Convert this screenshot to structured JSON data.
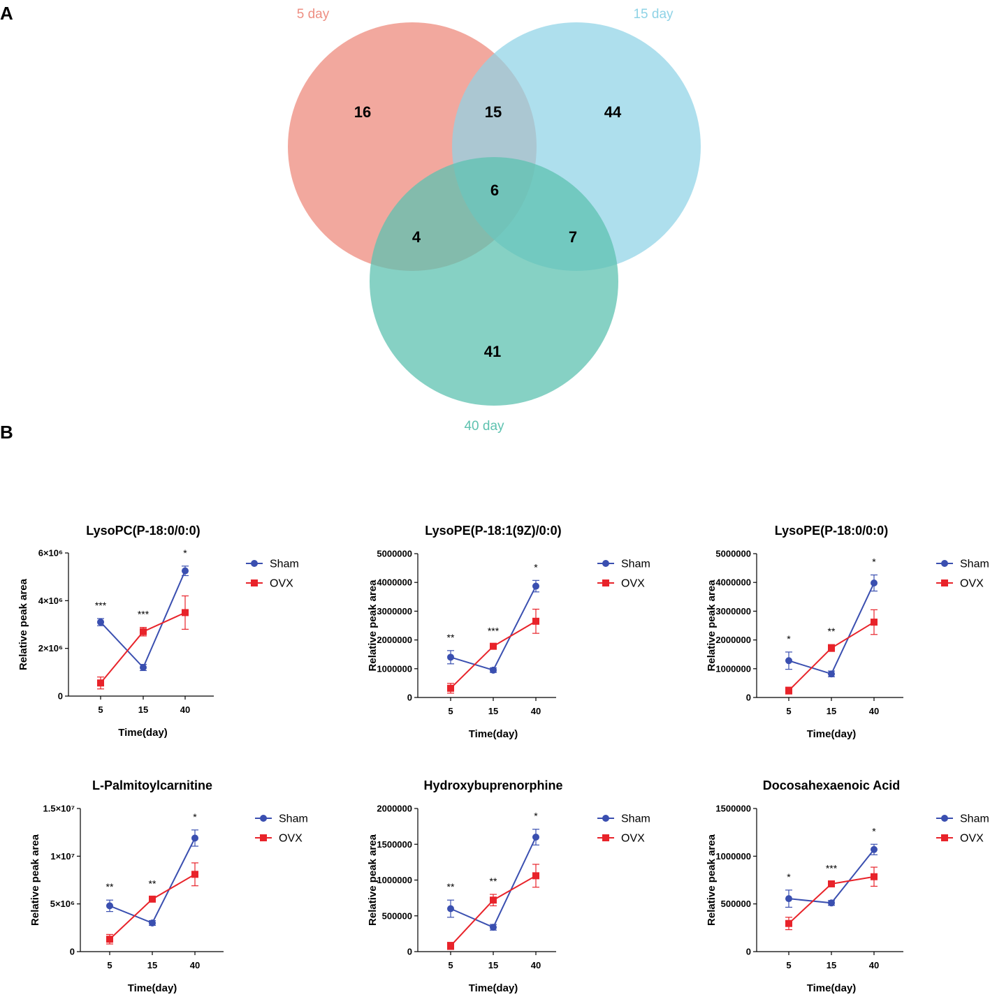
{
  "panel_labels": {
    "a": "A",
    "b": "B"
  },
  "colors": {
    "sham": "#3a4fb0",
    "ovx": "#e8232a",
    "venn_5": "#ee8f83",
    "venn_15": "#8fd3e6",
    "venn_40": "#5ec2b0"
  },
  "venn": {
    "sets": [
      {
        "label": "5 day",
        "color": "#ee8f83"
      },
      {
        "label": "15 day",
        "color": "#8fd3e6"
      },
      {
        "label": "40 day",
        "color": "#5ec2b0"
      }
    ],
    "counts": {
      "only_5": "16",
      "five_fifteen": "15",
      "only_15": "44",
      "all_three": "6",
      "five_forty": "4",
      "fifteen_forty": "7",
      "only_40": "41"
    }
  },
  "legend": {
    "sham": "Sham",
    "ovx": "OVX"
  },
  "chart_data": [
    {
      "type": "line",
      "title": "LysoPC(P-18:0/0:0)",
      "xlabel": "Time(day)",
      "ylabel": "Relative peak area",
      "categories": [
        "5",
        "15",
        "40"
      ],
      "ylim": [
        0,
        6000000
      ],
      "yticks": [
        0,
        2000000,
        4000000,
        6000000
      ],
      "ytick_labels": [
        "0",
        "2×10⁶",
        "4×10⁶",
        "6×10⁶"
      ],
      "series": [
        {
          "name": "Sham",
          "values": [
            3100000,
            1200000,
            5250000
          ],
          "errors": [
            150000,
            130000,
            200000
          ]
        },
        {
          "name": "OVX",
          "values": [
            550000,
            2700000,
            3500000
          ],
          "errors": [
            250000,
            180000,
            700000
          ]
        }
      ],
      "significance": [
        "***",
        "***",
        "*"
      ]
    },
    {
      "type": "line",
      "title": "LysoPE(P-18:1(9Z)/0:0)",
      "xlabel": "Time(day)",
      "ylabel": "Relative peak area",
      "categories": [
        "5",
        "15",
        "40"
      ],
      "ylim": [
        0,
        5000000
      ],
      "yticks": [
        0,
        1000000,
        2000000,
        3000000,
        4000000,
        5000000
      ],
      "ytick_labels": [
        "0",
        "1000000",
        "2000000",
        "3000000",
        "4000000",
        "5000000"
      ],
      "series": [
        {
          "name": "Sham",
          "values": [
            1400000,
            950000,
            3870000
          ],
          "errors": [
            230000,
            80000,
            200000
          ]
        },
        {
          "name": "OVX",
          "values": [
            320000,
            1780000,
            2650000
          ],
          "errors": [
            170000,
            80000,
            420000
          ]
        }
      ],
      "significance": [
        "**",
        "***",
        "*"
      ]
    },
    {
      "type": "line",
      "title": "LysoPE(P-18:0/0:0)",
      "xlabel": "Time(day)",
      "ylabel": "Relative peak area",
      "categories": [
        "5",
        "15",
        "40"
      ],
      "ylim": [
        0,
        5000000
      ],
      "yticks": [
        0,
        1000000,
        2000000,
        3000000,
        4000000,
        5000000
      ],
      "ytick_labels": [
        "0",
        "1000000",
        "2000000",
        "3000000",
        "4000000",
        "5000000"
      ],
      "series": [
        {
          "name": "Sham",
          "values": [
            1280000,
            820000,
            3980000
          ],
          "errors": [
            300000,
            100000,
            280000
          ]
        },
        {
          "name": "OVX",
          "values": [
            240000,
            1720000,
            2620000
          ],
          "errors": [
            120000,
            120000,
            430000
          ]
        }
      ],
      "significance": [
        "*",
        "**",
        "*"
      ]
    },
    {
      "type": "line",
      "title": "L-Palmitoylcarnitine",
      "xlabel": "Time(day)",
      "ylabel": "Relative peak area",
      "categories": [
        "5",
        "15",
        "40"
      ],
      "ylim": [
        0,
        15000000
      ],
      "yticks": [
        0,
        5000000,
        10000000,
        15000000
      ],
      "ytick_labels": [
        "0",
        "5×10⁶",
        "1×10⁷",
        "1.5×10⁷"
      ],
      "series": [
        {
          "name": "Sham",
          "values": [
            4800000,
            3000000,
            11900000
          ],
          "errors": [
            600000,
            250000,
            850000
          ]
        },
        {
          "name": "OVX",
          "values": [
            1300000,
            5500000,
            8100000
          ],
          "errors": [
            500000,
            250000,
            1200000
          ]
        }
      ],
      "significance": [
        "**",
        "**",
        "*"
      ]
    },
    {
      "type": "line",
      "title": "Hydroxybuprenorphine",
      "xlabel": "Time(day)",
      "ylabel": "Relative peak area",
      "categories": [
        "5",
        "15",
        "40"
      ],
      "ylim": [
        0,
        2000000
      ],
      "yticks": [
        0,
        500000,
        1000000,
        1500000,
        2000000
      ],
      "ytick_labels": [
        "0",
        "500000",
        "1000000",
        "1500000",
        "2000000"
      ],
      "series": [
        {
          "name": "Sham",
          "values": [
            600000,
            340000,
            1600000
          ],
          "errors": [
            120000,
            40000,
            110000
          ]
        },
        {
          "name": "OVX",
          "values": [
            80000,
            720000,
            1060000
          ],
          "errors": [
            50000,
            80000,
            160000
          ]
        }
      ],
      "significance": [
        "**",
        "**",
        "*"
      ]
    },
    {
      "type": "line",
      "title": "Docosahexaenoic Acid",
      "xlabel": "Time(day)",
      "ylabel": "Relative peak area",
      "categories": [
        "5",
        "15",
        "40"
      ],
      "ylim": [
        0,
        1500000
      ],
      "yticks": [
        0,
        500000,
        1000000,
        1500000
      ],
      "ytick_labels": [
        "0",
        "500000",
        "1000000",
        "1500000"
      ],
      "series": [
        {
          "name": "Sham",
          "values": [
            555000,
            510000,
            1070000
          ],
          "errors": [
            90000,
            25000,
            55000
          ]
        },
        {
          "name": "OVX",
          "values": [
            295000,
            710000,
            785000
          ],
          "errors": [
            65000,
            25000,
            100000
          ]
        }
      ],
      "significance": [
        "*",
        "***",
        "*"
      ]
    }
  ]
}
